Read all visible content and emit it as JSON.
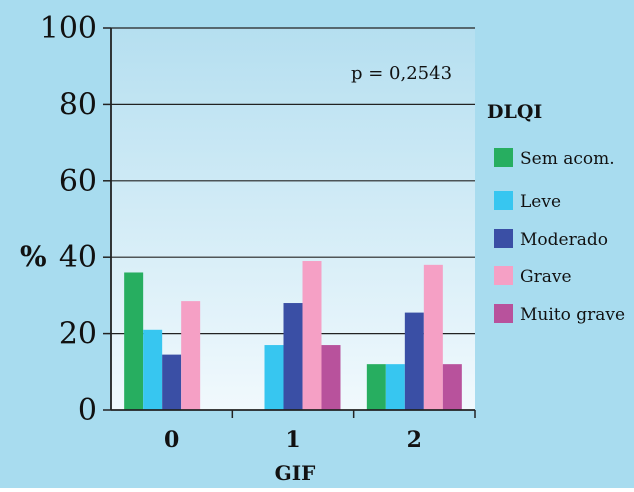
{
  "chart_data": {
    "type": "bar",
    "title": "",
    "xlabel": "GIF",
    "ylabel": "%",
    "ylim": [
      0,
      100
    ],
    "yticks": [
      0,
      20,
      40,
      60,
      80,
      100
    ],
    "categories": [
      "0",
      "1",
      "2"
    ],
    "grid": true,
    "legend_position": "right",
    "legend_title": "DLQI",
    "annotation": "p = 0,2543",
    "series": [
      {
        "name": "Sem acom.",
        "color": "#27ae60",
        "values": [
          36,
          0,
          12
        ]
      },
      {
        "name": "Leve",
        "color": "#37c6f0",
        "values": [
          21,
          17,
          12
        ]
      },
      {
        "name": "Moderado",
        "color": "#3a4fa5",
        "values": [
          14.5,
          28,
          25.5
        ]
      },
      {
        "name": "Grave",
        "color": "#f5a0c5",
        "values": [
          28.5,
          39,
          38
        ]
      },
      {
        "name": "Muito grave",
        "color": "#b8529c",
        "values": [
          0,
          17,
          12
        ]
      }
    ]
  },
  "colors": {
    "outer_background": "#a8dcef",
    "plot_top": "#b5dff0",
    "plot_bottom": "#f1f9fd",
    "axis": "#222222"
  }
}
